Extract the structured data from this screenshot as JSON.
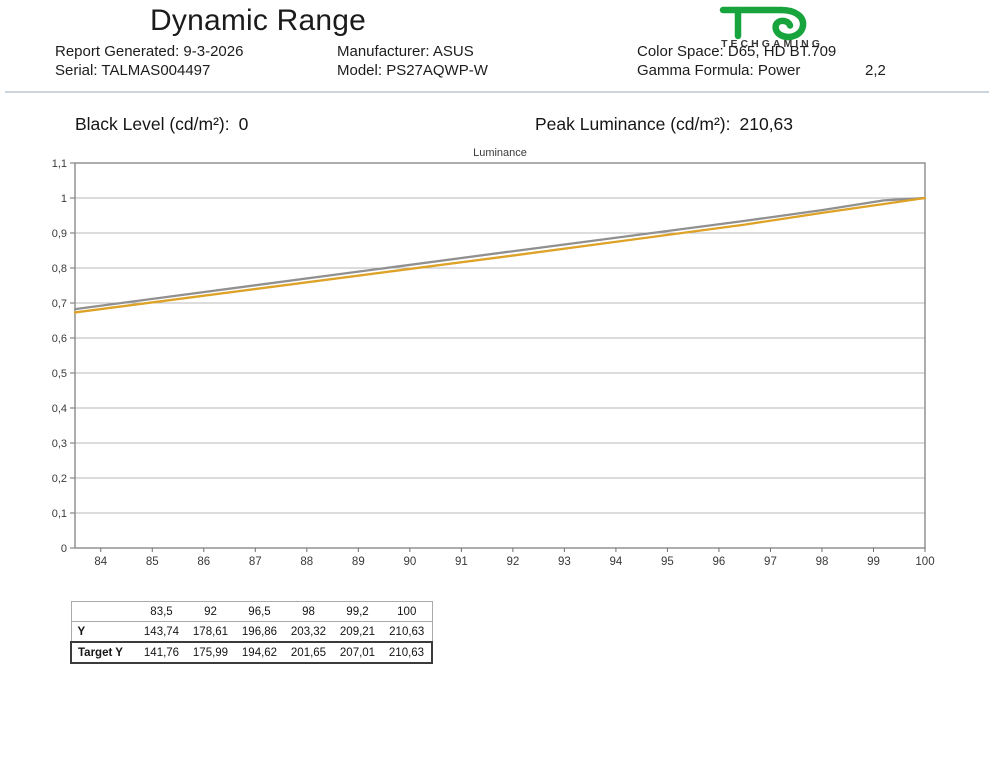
{
  "header": {
    "title": "Dynamic Range",
    "logo": {
      "brand": "TECHGAMING",
      "glyph": "te-monogram-icon",
      "green": "#18a43d",
      "blue": "#2f9ad1"
    },
    "meta": {
      "report_generated": "Report Generated: 9-3-2026",
      "serial": "Serial: TALMAS004497",
      "manufacturer": "Manufacturer: ASUS",
      "model": "Model: PS27AQWP-W",
      "color_space": "Color Space: D65, HD BT.709",
      "gamma_formula": "Gamma Formula: Power",
      "gamma_value": "2,2"
    }
  },
  "stats": {
    "black_level_label": "Black Level (cd/m²):",
    "black_level_value": "0",
    "peak_luminance_label": "Peak Luminance (cd/m²):",
    "peak_luminance_value": "210,63"
  },
  "chart_data": {
    "type": "line",
    "title": "Luminance",
    "xlim": [
      83.5,
      100
    ],
    "ylim": [
      0,
      1.1
    ],
    "x_ticks": [
      84,
      85,
      86,
      87,
      88,
      89,
      90,
      91,
      92,
      93,
      94,
      95,
      96,
      97,
      98,
      99,
      100
    ],
    "y_ticks": [
      0,
      0.1,
      0.2,
      0.3,
      0.4,
      0.5,
      0.6,
      0.7,
      0.8,
      0.9,
      1,
      1.1
    ],
    "y_tick_labels": [
      "0",
      "0,1",
      "0,2",
      "0,3",
      "0,4",
      "0,5",
      "0,6",
      "0,7",
      "0,8",
      "0,9",
      "1",
      "1,1"
    ],
    "grid": "horizontal",
    "legend": "none",
    "normalize_peak": 210.63,
    "x": [
      83.5,
      92,
      96.5,
      98,
      99.2,
      100
    ],
    "series": [
      {
        "name": "Y",
        "color": "#909090",
        "values_cdm2": [
          143.74,
          178.61,
          196.86,
          203.32,
          209.21,
          210.63
        ]
      },
      {
        "name": "Target Y",
        "color": "#dda226",
        "values_cdm2": [
          141.76,
          175.99,
          194.62,
          201.65,
          207.01,
          210.63
        ]
      }
    ]
  },
  "table": {
    "col_headers": [
      "",
      "83,5",
      "92",
      "96,5",
      "98",
      "99,2",
      "100"
    ],
    "rows": [
      {
        "label": "Y",
        "values": [
          "143,74",
          "178,61",
          "196,86",
          "203,32",
          "209,21",
          "210,63"
        ]
      },
      {
        "label": "Target Y",
        "values": [
          "141,76",
          "175,99",
          "194,62",
          "201,65",
          "207,01",
          "210,63"
        ]
      }
    ]
  }
}
